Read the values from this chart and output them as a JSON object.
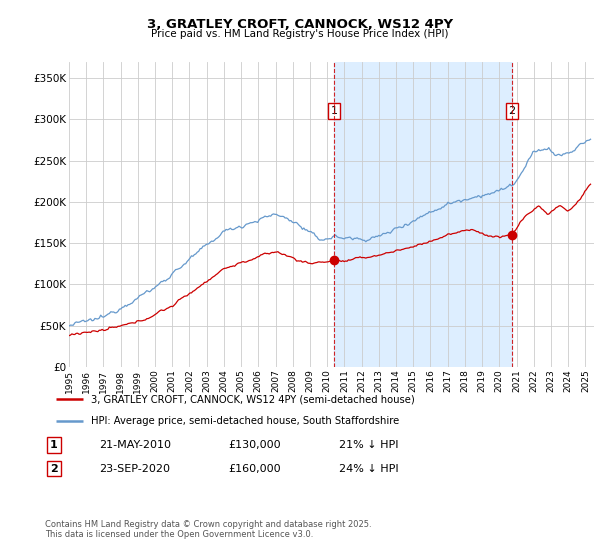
{
  "title": "3, GRATLEY CROFT, CANNOCK, WS12 4PY",
  "subtitle": "Price paid vs. HM Land Registry's House Price Index (HPI)",
  "ylabel_ticks": [
    "£0",
    "£50K",
    "£100K",
    "£150K",
    "£200K",
    "£250K",
    "£300K",
    "£350K"
  ],
  "ytick_values": [
    0,
    50000,
    100000,
    150000,
    200000,
    250000,
    300000,
    350000
  ],
  "ylim": [
    0,
    370000
  ],
  "xlim_start": 1995.0,
  "xlim_end": 2025.5,
  "line1_color": "#cc0000",
  "line2_color": "#6699cc",
  "shade_color": "#ddeeff",
  "vline1_x": 2010.39,
  "vline2_x": 2020.73,
  "vline_color": "#cc0000",
  "marker1_x": 2010.39,
  "marker1_y": 130000,
  "marker2_x": 2020.73,
  "marker2_y": 160000,
  "annotation1_label": "1",
  "annotation2_label": "2",
  "ann1_y": 310000,
  "ann2_y": 310000,
  "legend_line1": "3, GRATLEY CROFT, CANNOCK, WS12 4PY (semi-detached house)",
  "legend_line2": "HPI: Average price, semi-detached house, South Staffordshire",
  "table_row1": [
    "1",
    "21-MAY-2010",
    "£130,000",
    "21% ↓ HPI"
  ],
  "table_row2": [
    "2",
    "23-SEP-2020",
    "£160,000",
    "24% ↓ HPI"
  ],
  "footer": "Contains HM Land Registry data © Crown copyright and database right 2025.\nThis data is licensed under the Open Government Licence v3.0.",
  "bg_color": "#ffffff",
  "grid_color": "#cccccc",
  "xtick_years": [
    1995,
    1996,
    1997,
    1998,
    1999,
    2000,
    2001,
    2002,
    2003,
    2004,
    2005,
    2006,
    2007,
    2008,
    2009,
    2010,
    2011,
    2012,
    2013,
    2014,
    2015,
    2016,
    2017,
    2018,
    2019,
    2020,
    2021,
    2022,
    2023,
    2024,
    2025
  ]
}
